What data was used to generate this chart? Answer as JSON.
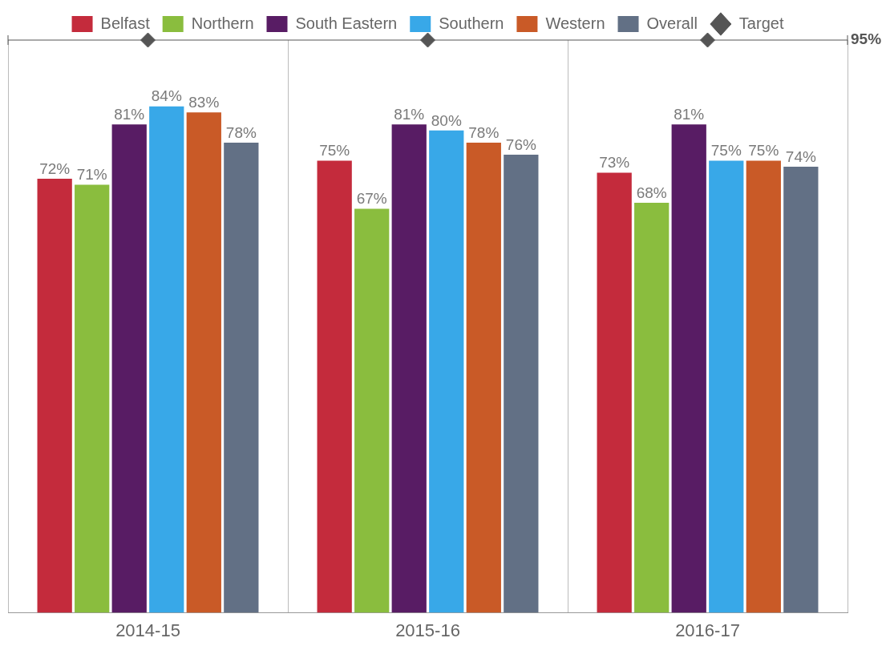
{
  "chart_data": {
    "type": "bar",
    "categories": [
      "2014-15",
      "2015-16",
      "2016-17"
    ],
    "series": [
      {
        "name": "Belfast",
        "color": "#c42b3c",
        "values": [
          72,
          75,
          73
        ],
        "value_labels": [
          "72%",
          "75%",
          "73%"
        ]
      },
      {
        "name": "Northern",
        "color": "#8abd3e",
        "values": [
          71,
          67,
          68
        ],
        "value_labels": [
          "71%",
          "67%",
          "68%"
        ]
      },
      {
        "name": "South Eastern",
        "color": "#581c64",
        "values": [
          81,
          81,
          81
        ],
        "value_labels": [
          "81%",
          "81%",
          "81%"
        ]
      },
      {
        "name": "Southern",
        "color": "#38a8e8",
        "values": [
          84,
          80,
          75
        ],
        "value_labels": [
          "84%",
          "80%",
          "75%"
        ]
      },
      {
        "name": "Western",
        "color": "#c95a27",
        "values": [
          83,
          78,
          75
        ],
        "value_labels": [
          "83%",
          "78%",
          "75%"
        ]
      },
      {
        "name": "Overall",
        "color": "#627085",
        "values": [
          78,
          76,
          74
        ],
        "value_labels": [
          "78%",
          "76%",
          "74%"
        ]
      },
      {
        "name": "Target",
        "type": "scatter",
        "color": "#555555",
        "x": [
          "2014-15",
          "2015-16",
          "2016-17"
        ],
        "values": [
          95,
          95,
          95
        ],
        "marker": "diamond"
      }
    ],
    "ref_lines": [
      {
        "axis": "y",
        "value": 95,
        "label": "95%",
        "color": "#555555"
      }
    ],
    "legend": "top",
    "grid": "x",
    "tick_labels": "x"
  }
}
